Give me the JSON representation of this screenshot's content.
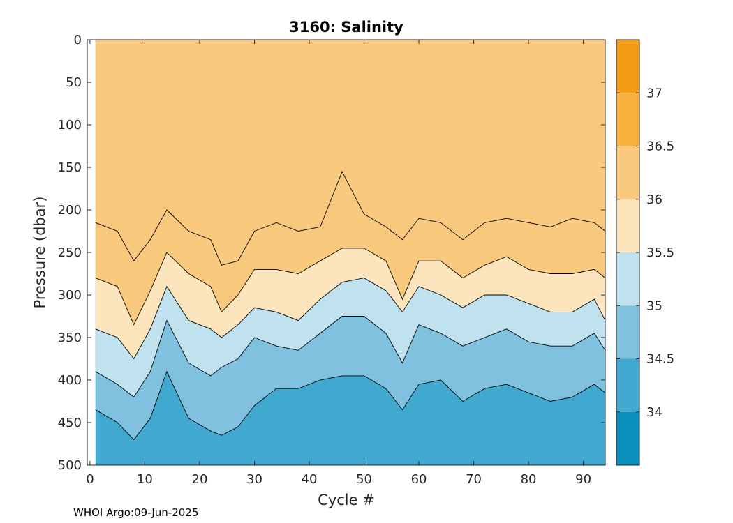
{
  "chart_data": {
    "type": "contour",
    "title": "3160:  Salinity",
    "xlabel": "Cycle #",
    "ylabel": "Pressure (dbar)",
    "xlim": [
      -0.5,
      94
    ],
    "ylim": [
      500,
      0
    ],
    "x_tick_labels": [
      "0",
      "10",
      "20",
      "30",
      "40",
      "50",
      "60",
      "70",
      "80",
      "90"
    ],
    "y_tick_labels": [
      "0",
      "50",
      "100",
      "150",
      "200",
      "250",
      "300",
      "350",
      "400",
      "450",
      "500"
    ],
    "colorbar": {
      "range": [
        33.5,
        37.5
      ],
      "tick_labels": [
        "34",
        "34.5",
        "35",
        "35.5",
        "36",
        "36.5",
        "37"
      ],
      "band_colors": [
        "#0a8fbd",
        "#41a9cf",
        "#7fc1de",
        "#c0e1ee",
        "#fce5bc",
        "#f9c97e",
        "#f8b13d",
        "#f59c17"
      ]
    },
    "contour_levels": [
      34.5,
      35,
      35.5,
      36,
      36.5
    ],
    "isohaline_depths_dbar": {
      "cycles": [
        1,
        5,
        8,
        11,
        14,
        18,
        22,
        24,
        27,
        30,
        34,
        38,
        42,
        46,
        50,
        54,
        57,
        60,
        64,
        68,
        72,
        76,
        80,
        84,
        88,
        92,
        94
      ],
      "s34_5": [
        435,
        450,
        470,
        445,
        390,
        445,
        460,
        465,
        455,
        430,
        410,
        410,
        400,
        395,
        395,
        410,
        435,
        405,
        400,
        425,
        410,
        405,
        415,
        425,
        420,
        405,
        415
      ],
      "s35": [
        390,
        405,
        420,
        390,
        330,
        380,
        395,
        385,
        375,
        350,
        360,
        365,
        345,
        325,
        325,
        345,
        380,
        335,
        345,
        360,
        350,
        340,
        355,
        360,
        360,
        345,
        365
      ],
      "s35_5": [
        340,
        350,
        375,
        340,
        290,
        330,
        340,
        350,
        335,
        315,
        320,
        330,
        305,
        285,
        280,
        295,
        320,
        290,
        300,
        315,
        300,
        300,
        310,
        320,
        320,
        305,
        330
      ],
      "s36": [
        280,
        290,
        335,
        295,
        250,
        275,
        290,
        320,
        300,
        270,
        270,
        275,
        260,
        245,
        245,
        260,
        305,
        260,
        260,
        280,
        265,
        255,
        270,
        275,
        275,
        270,
        280
      ],
      "s36_5": [
        215,
        225,
        260,
        235,
        200,
        225,
        235,
        265,
        260,
        225,
        215,
        225,
        220,
        155,
        205,
        220,
        235,
        210,
        215,
        235,
        215,
        210,
        215,
        220,
        210,
        215,
        225
      ]
    },
    "footer": "WHOI Argo:09-Jun-2025"
  }
}
